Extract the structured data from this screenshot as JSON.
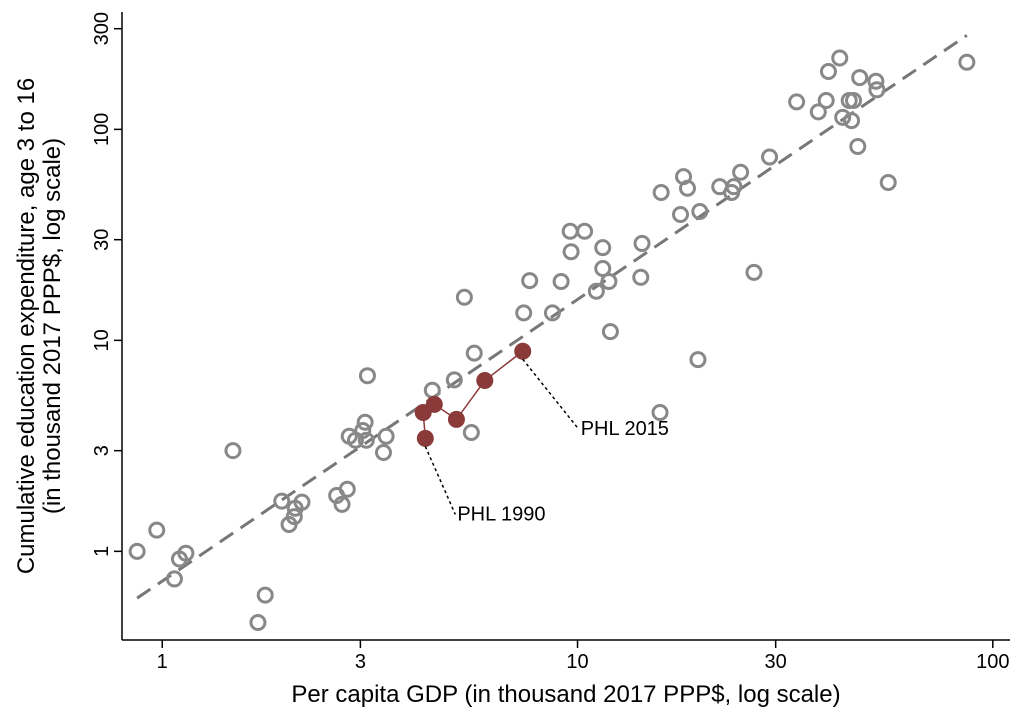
{
  "chart_data": {
    "type": "scatter",
    "xlabel": "Per capita GDP (in thousand 2017 PPP$, log scale)",
    "ylabel": [
      "Cumulative education expenditure, age 3 to 16",
      "(in thousand 2017 PPP$, log scale)"
    ],
    "xscale": "log",
    "yscale": "log",
    "xlim": [
      0.8,
      110
    ],
    "ylim": [
      0.38,
      360
    ],
    "xticks": [
      1,
      3,
      10,
      30,
      100
    ],
    "yticks": [
      1,
      3,
      10,
      30,
      100,
      300
    ],
    "series": [
      {
        "color": "#888888",
        "marker": "open",
        "connect": false,
        "x": [
          0.87,
          0.97,
          1.07,
          1.1,
          1.14,
          1.48,
          1.7,
          1.77,
          1.94,
          2.02,
          2.08,
          2.09,
          2.17,
          2.63,
          2.71,
          2.79,
          2.82,
          2.92,
          3.04,
          3.08,
          3.1,
          3.12,
          3.41,
          3.46,
          4.47,
          5.05,
          5.34,
          5.55,
          5.64,
          7.42,
          7.67,
          8.7,
          9.13,
          9.6,
          9.65,
          10.4,
          11.1,
          11.5,
          11.5,
          11.9,
          12.0,
          14.2,
          14.3,
          15.9,
          15.8,
          17.7,
          18.0,
          18.4,
          19.5,
          19.7,
          22.0,
          23.5,
          23.8,
          24.7,
          26.6,
          29.0,
          33.7,
          38.0,
          39.7,
          40.2,
          42.8,
          43.5,
          45.7,
          45.1,
          46.2,
          47.3,
          47.8,
          52.6,
          52.3,
          56.0,
          86.6
        ],
        "values": [
          1.0,
          1.26,
          0.74,
          0.92,
          0.98,
          3.0,
          0.46,
          0.62,
          1.73,
          1.34,
          1.46,
          1.6,
          1.71,
          1.84,
          1.67,
          1.97,
          3.51,
          3.36,
          3.74,
          4.09,
          3.36,
          6.8,
          2.94,
          3.51,
          5.8,
          6.5,
          16.0,
          3.66,
          8.7,
          13.5,
          19.2,
          13.5,
          19.0,
          32.9,
          26.3,
          32.9,
          17.1,
          27.5,
          21.9,
          19.0,
          11.0,
          19.9,
          28.8,
          50.2,
          4.55,
          39.5,
          59.7,
          52.6,
          8.1,
          40.8,
          53.5,
          50.2,
          53.5,
          62.6,
          21.0,
          74,
          135,
          121,
          137,
          188,
          218,
          114,
          110,
          137,
          137,
          83,
          176,
          154,
          169,
          56,
          208
        ]
      },
      {
        "color": "#8b3a3a",
        "marker": "filled",
        "connect": true,
        "x": [
          4.3,
          4.25,
          4.52,
          5.11,
          5.98,
          7.38
        ],
        "values": [
          3.43,
          4.55,
          4.97,
          4.22,
          6.45,
          8.88
        ]
      }
    ],
    "fit": {
      "color": "#777777",
      "x": [
        0.87,
        86.6
      ],
      "values": [
        0.6,
        279
      ]
    },
    "annotations": [
      "PHL 1990",
      "PHL 2015"
    ]
  }
}
